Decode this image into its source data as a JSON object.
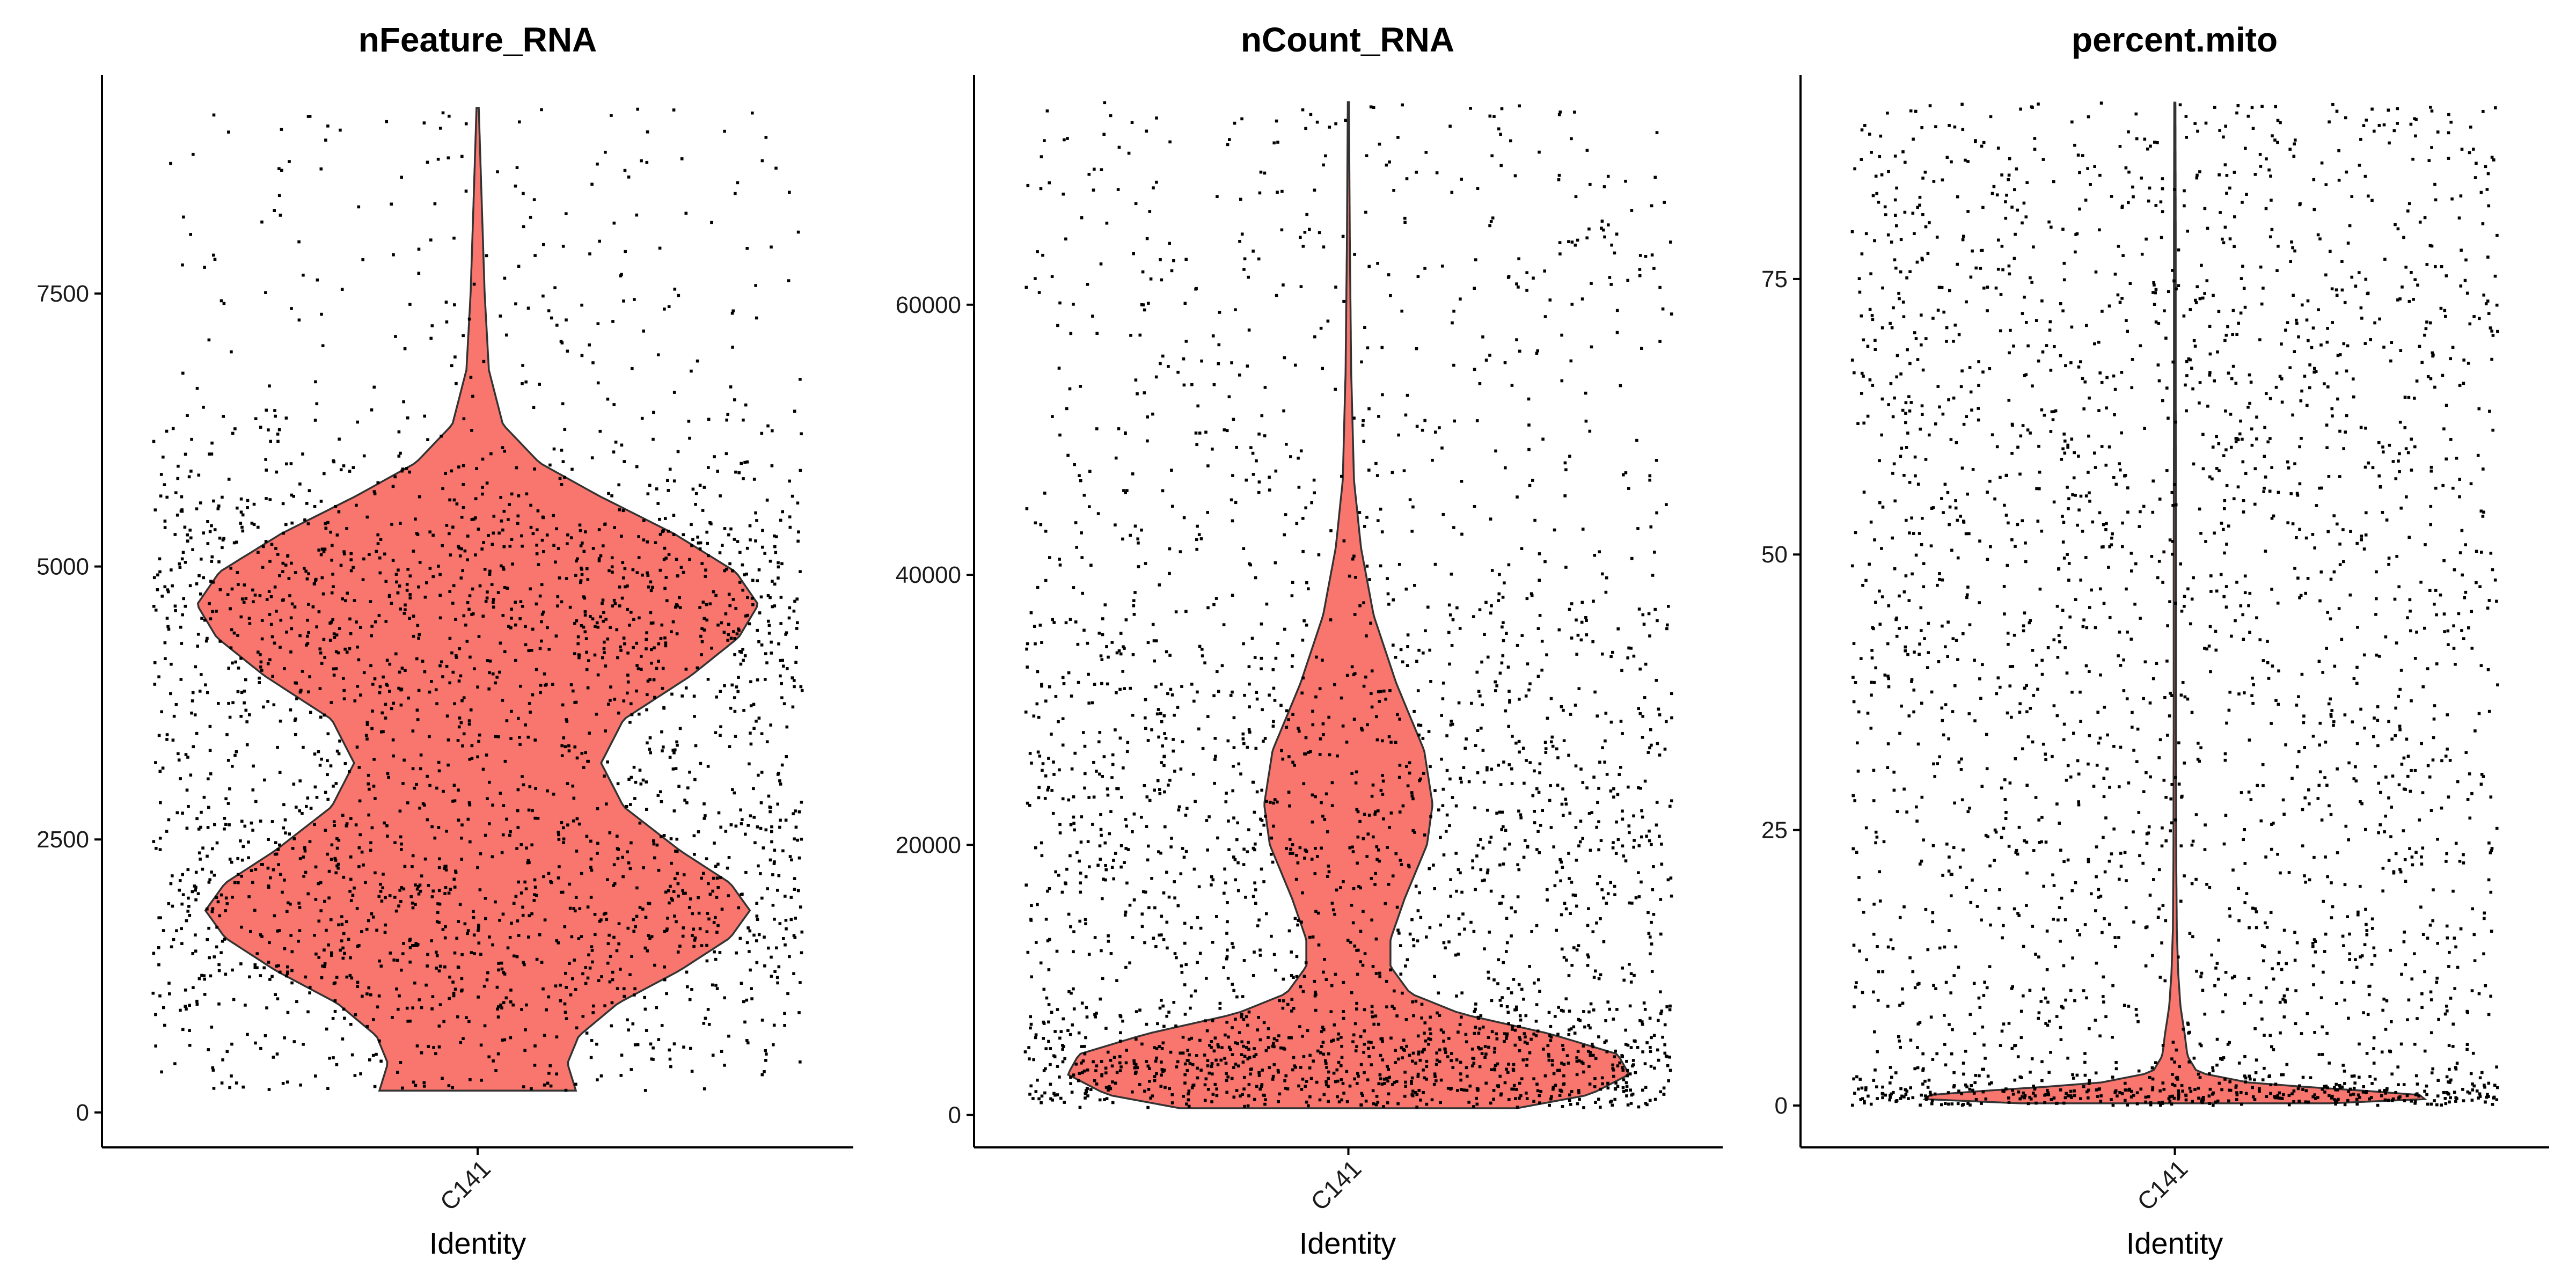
{
  "chart_data": [
    {
      "type": "violin",
      "title": "nFeature_RNA",
      "xlabel": "Identity",
      "ylabel": "",
      "categories": [
        "C141"
      ],
      "ylim": [
        0,
        9200
      ],
      "yticks": [
        0,
        2500,
        5000,
        7500
      ],
      "fill_color": "#F8766D",
      "violin_data_max": 9200,
      "density_profile": [
        {
          "y": 200,
          "w": 0.35
        },
        {
          "y": 450,
          "w": 0.32
        },
        {
          "y": 700,
          "w": 0.36
        },
        {
          "y": 1000,
          "w": 0.5
        },
        {
          "y": 1300,
          "w": 0.72
        },
        {
          "y": 1600,
          "w": 0.9
        },
        {
          "y": 1850,
          "w": 0.97
        },
        {
          "y": 2100,
          "w": 0.9
        },
        {
          "y": 2400,
          "w": 0.72
        },
        {
          "y": 2800,
          "w": 0.52
        },
        {
          "y": 3200,
          "w": 0.44
        },
        {
          "y": 3600,
          "w": 0.52
        },
        {
          "y": 4000,
          "w": 0.76
        },
        {
          "y": 4350,
          "w": 0.93
        },
        {
          "y": 4650,
          "w": 1.0
        },
        {
          "y": 4950,
          "w": 0.92
        },
        {
          "y": 5300,
          "w": 0.7
        },
        {
          "y": 5650,
          "w": 0.43
        },
        {
          "y": 5950,
          "w": 0.22
        },
        {
          "y": 6300,
          "w": 0.09
        },
        {
          "y": 6800,
          "w": 0.04
        },
        {
          "y": 7500,
          "w": 0.025
        },
        {
          "y": 8300,
          "w": 0.015
        },
        {
          "y": 9200,
          "w": 0.004
        }
      ],
      "points": {
        "n": 2600,
        "jitter": 0.45,
        "ymin": 200,
        "ymax": 9200,
        "seed": 101
      }
    },
    {
      "type": "violin",
      "title": "nCount_RNA",
      "xlabel": "Identity",
      "ylabel": "",
      "categories": [
        "C141"
      ],
      "ylim": [
        0,
        75000
      ],
      "yticks": [
        0,
        20000,
        40000,
        60000
      ],
      "fill_color": "#F8766D",
      "violin_data_max": 75000,
      "density_profile": [
        {
          "y": 500,
          "w": 0.6
        },
        {
          "y": 1500,
          "w": 0.86
        },
        {
          "y": 3000,
          "w": 1.0
        },
        {
          "y": 4500,
          "w": 0.96
        },
        {
          "y": 6000,
          "w": 0.72
        },
        {
          "y": 7500,
          "w": 0.4
        },
        {
          "y": 9000,
          "w": 0.22
        },
        {
          "y": 11000,
          "w": 0.15
        },
        {
          "y": 13000,
          "w": 0.15
        },
        {
          "y": 16000,
          "w": 0.2
        },
        {
          "y": 20000,
          "w": 0.28
        },
        {
          "y": 23000,
          "w": 0.3
        },
        {
          "y": 27000,
          "w": 0.27
        },
        {
          "y": 32000,
          "w": 0.17
        },
        {
          "y": 37000,
          "w": 0.09
        },
        {
          "y": 42000,
          "w": 0.045
        },
        {
          "y": 47000,
          "w": 0.02
        },
        {
          "y": 55000,
          "w": 0.01
        },
        {
          "y": 65000,
          "w": 0.005
        },
        {
          "y": 75000,
          "w": 0.002
        }
      ],
      "points": {
        "n": 2600,
        "jitter": 0.45,
        "ymin": 500,
        "ymax": 75000,
        "seed": 202
      }
    },
    {
      "type": "violin",
      "title": "percent.mito",
      "xlabel": "Identity",
      "ylabel": "",
      "categories": [
        "C141"
      ],
      "ylim": [
        0,
        91
      ],
      "yticks": [
        0,
        25,
        50,
        75
      ],
      "fill_color": "#F8766D",
      "violin_data_max": 91,
      "density_profile": [
        {
          "y": 0.2,
          "w": 0.55
        },
        {
          "y": 0.7,
          "w": 1.0
        },
        {
          "y": 1.3,
          "w": 0.7
        },
        {
          "y": 2.0,
          "w": 0.28
        },
        {
          "y": 3.0,
          "w": 0.08
        },
        {
          "y": 4.5,
          "w": 0.045
        },
        {
          "y": 6.5,
          "w": 0.035
        },
        {
          "y": 9.0,
          "w": 0.02
        },
        {
          "y": 12.0,
          "w": 0.012
        },
        {
          "y": 16.0,
          "w": 0.007
        },
        {
          "y": 22.0,
          "w": 0.005
        },
        {
          "y": 35.0,
          "w": 0.004
        },
        {
          "y": 50.0,
          "w": 0.004
        },
        {
          "y": 65.0,
          "w": 0.003
        },
        {
          "y": 80.0,
          "w": 0.003
        },
        {
          "y": 91.0,
          "w": 0.002
        }
      ],
      "points": {
        "n": 2600,
        "jitter": 0.45,
        "ymin": 0,
        "ymax": 91,
        "seed": 303
      }
    }
  ]
}
